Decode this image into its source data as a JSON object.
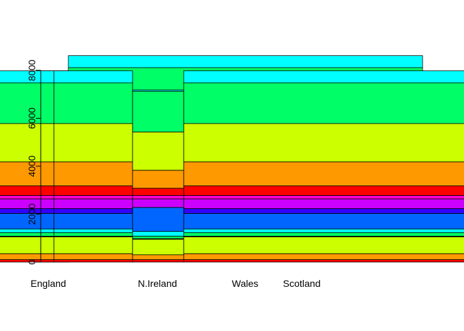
{
  "chart_data": {
    "type": "bar",
    "stacked": true,
    "categories": [
      "England",
      "N.Ireland",
      "Wales",
      "Scotland"
    ],
    "y_ticks": [
      "0",
      "2000",
      "4000",
      "6000",
      "8000"
    ],
    "ylim": [
      0,
      8500
    ],
    "grid": false,
    "legend": "none",
    "segments": [
      {
        "color": "#FF0000",
        "values": [
          0,
          0,
          0,
          0
        ]
      },
      {
        "color": "#FF0000",
        "values": [
          100,
          100,
          100,
          100
        ]
      },
      {
        "color": "#FF9900",
        "values": [
          250,
          200,
          250,
          250
        ]
      },
      {
        "color": "#CCFF00",
        "values": [
          700,
          650,
          700,
          700
        ]
      },
      {
        "color": "#33FF00",
        "values": [
          30,
          30,
          30,
          30
        ]
      },
      {
        "color": "#00FF66",
        "values": [
          150,
          100,
          150,
          150
        ]
      },
      {
        "color": "#00FFFF",
        "values": [
          150,
          200,
          150,
          150
        ]
      },
      {
        "color": "#0066FF",
        "values": [
          650,
          1000,
          650,
          650
        ]
      },
      {
        "color": "#3300FF",
        "values": [
          200,
          0,
          200,
          200
        ]
      },
      {
        "color": "#CC00FF",
        "values": [
          400,
          350,
          400,
          400
        ]
      },
      {
        "color": "#FF00CC",
        "values": [
          150,
          150,
          150,
          150
        ]
      },
      {
        "color": "#FF0000",
        "values": [
          400,
          300,
          400,
          400
        ]
      },
      {
        "color": "#FF9900",
        "values": [
          1000,
          750,
          1000,
          1000
        ]
      },
      {
        "color": "#CCFF00",
        "values": [
          1600,
          1600,
          1600,
          1600
        ]
      },
      {
        "color": "#00FF66",
        "values": [
          1700,
          1700,
          1700,
          1700
        ]
      },
      {
        "color": "#00FFFF",
        "values": [
          500,
          50,
          500,
          500
        ]
      }
    ]
  }
}
